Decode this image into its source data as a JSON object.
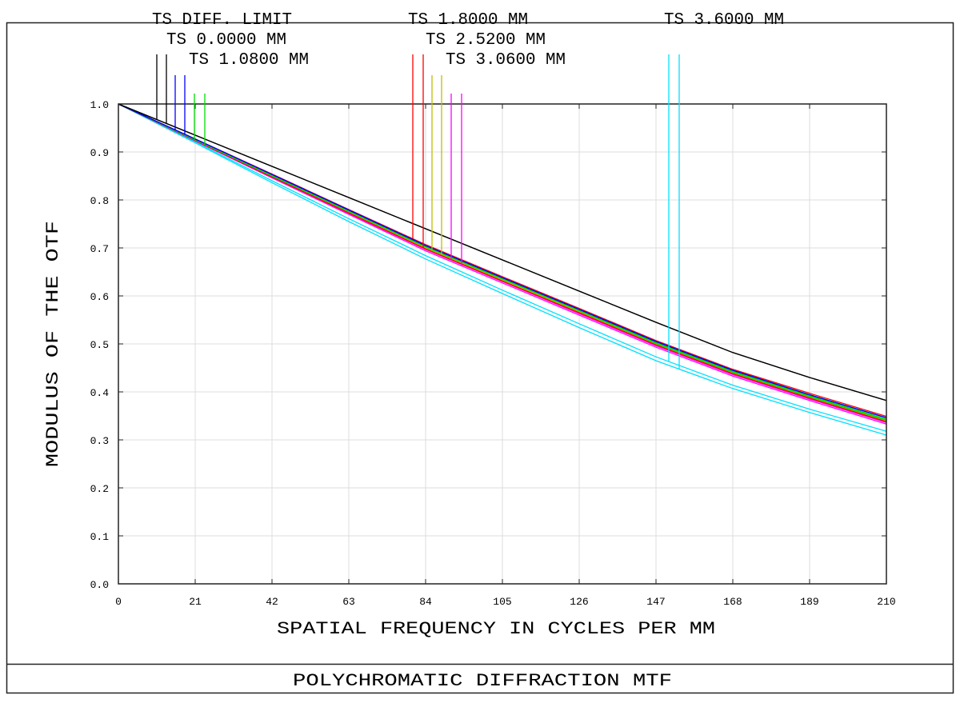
{
  "chart_data": {
    "type": "line",
    "title": "POLYCHROMATIC DIFFRACTION MTF",
    "xlabel": "SPATIAL FREQUENCY IN CYCLES PER MM",
    "ylabel": "MODULUS OF THE OTF",
    "xlim": [
      0,
      210
    ],
    "ylim": [
      0,
      1.0
    ],
    "xticks": [
      "0",
      "21",
      "42",
      "63",
      "84",
      "105",
      "126",
      "147",
      "168",
      "189",
      "210"
    ],
    "yticks": [
      "0.0",
      "0.1",
      "0.2",
      "0.3",
      "0.4",
      "0.5",
      "0.6",
      "0.7",
      "0.8",
      "0.9",
      "1.0"
    ],
    "grid": true,
    "legend_placement": "top",
    "x": [
      0,
      21,
      42,
      63,
      84,
      105,
      126,
      147,
      168,
      189,
      210
    ],
    "series": [
      {
        "name": "TS DIFF. LIMIT",
        "color": "#000000",
        "T": [
          1,
          0.935,
          0.87,
          0.805,
          0.74,
          0.675,
          0.61,
          0.545,
          0.482,
          0.43,
          0.382
        ],
        "S": [
          1,
          0.935,
          0.87,
          0.805,
          0.74,
          0.675,
          0.61,
          0.545,
          0.482,
          0.43,
          0.382
        ]
      },
      {
        "name": "TS 0.0000 MM",
        "color": "#0000ff",
        "T": [
          1,
          0.927,
          0.853,
          0.779,
          0.705,
          0.638,
          0.572,
          0.505,
          0.445,
          0.394,
          0.346
        ],
        "S": [
          1,
          0.927,
          0.853,
          0.779,
          0.705,
          0.638,
          0.572,
          0.505,
          0.445,
          0.394,
          0.346
        ]
      },
      {
        "name": "TS 1.0800 MM",
        "color": "#00dd00",
        "T": [
          1,
          0.926,
          0.852,
          0.778,
          0.704,
          0.637,
          0.571,
          0.503,
          0.443,
          0.392,
          0.343
        ],
        "S": [
          1,
          0.925,
          0.85,
          0.776,
          0.702,
          0.635,
          0.569,
          0.501,
          0.441,
          0.39,
          0.341
        ]
      },
      {
        "name": "TS 1.8000 MM",
        "color": "#ff0000",
        "T": [
          1,
          0.927,
          0.854,
          0.78,
          0.707,
          0.64,
          0.574,
          0.507,
          0.447,
          0.397,
          0.349
        ],
        "S": [
          1,
          0.924,
          0.848,
          0.773,
          0.698,
          0.631,
          0.565,
          0.498,
          0.438,
          0.387,
          0.338
        ]
      },
      {
        "name": "TS 2.5200 MM",
        "color": "#c0c000",
        "T": [
          1,
          0.926,
          0.851,
          0.777,
          0.703,
          0.636,
          0.57,
          0.502,
          0.442,
          0.391,
          0.342
        ],
        "S": [
          1,
          0.925,
          0.849,
          0.774,
          0.7,
          0.633,
          0.567,
          0.499,
          0.439,
          0.388,
          0.339
        ]
      },
      {
        "name": "TS 3.0600 MM",
        "color": "#ff00ff",
        "T": [
          1,
          0.924,
          0.848,
          0.772,
          0.697,
          0.63,
          0.563,
          0.496,
          0.436,
          0.385,
          0.336
        ],
        "S": [
          1,
          0.923,
          0.846,
          0.77,
          0.694,
          0.627,
          0.56,
          0.493,
          0.433,
          0.382,
          0.333
        ]
      },
      {
        "name": "TS 3.6000 MM",
        "color": "#00e0ff",
        "T": [
          1,
          0.921,
          0.84,
          0.761,
          0.684,
          0.612,
          0.542,
          0.473,
          0.414,
          0.364,
          0.318
        ],
        "S": [
          1,
          0.919,
          0.836,
          0.755,
          0.677,
          0.605,
          0.534,
          0.465,
          0.407,
          0.357,
          0.31
        ]
      }
    ]
  }
}
